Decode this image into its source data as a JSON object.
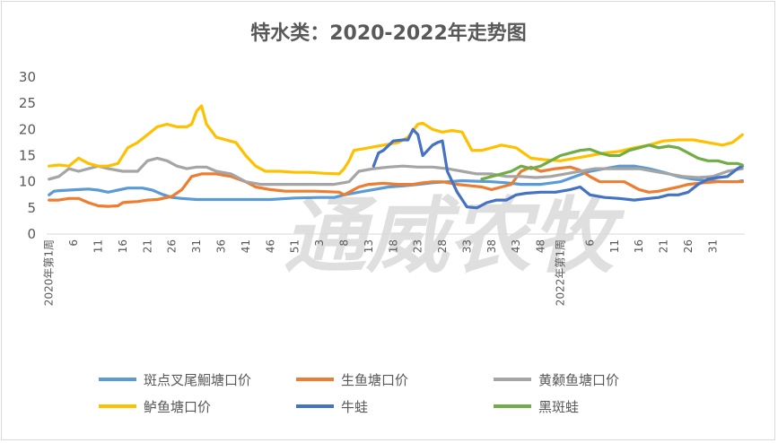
{
  "chart_data": {
    "type": "line",
    "title": "特水类：2020-2022年走势图",
    "watermark": "通威农牧",
    "ylim": [
      0,
      30
    ],
    "yticks": [
      0,
      5,
      10,
      15,
      20,
      25,
      30
    ],
    "grid": false,
    "legend_position": "bottom",
    "x_period_labels": [
      "2020年第1周",
      "2022年第1周"
    ],
    "x_count": 142,
    "x_ticks": [
      {
        "i": 5,
        "label": "6"
      },
      {
        "i": 10,
        "label": "11"
      },
      {
        "i": 15,
        "label": "16"
      },
      {
        "i": 20,
        "label": "21"
      },
      {
        "i": 25,
        "label": "26"
      },
      {
        "i": 30,
        "label": "31"
      },
      {
        "i": 35,
        "label": "36"
      },
      {
        "i": 40,
        "label": "41"
      },
      {
        "i": 45,
        "label": "46"
      },
      {
        "i": 50,
        "label": "51"
      },
      {
        "i": 55,
        "label": "3"
      },
      {
        "i": 60,
        "label": "8"
      },
      {
        "i": 65,
        "label": "13"
      },
      {
        "i": 70,
        "label": "18"
      },
      {
        "i": 75,
        "label": "23"
      },
      {
        "i": 80,
        "label": "28"
      },
      {
        "i": 85,
        "label": "33"
      },
      {
        "i": 90,
        "label": "38"
      },
      {
        "i": 95,
        "label": "43"
      },
      {
        "i": 100,
        "label": "48"
      },
      {
        "i": 110,
        "label": "6"
      },
      {
        "i": 115,
        "label": "11"
      },
      {
        "i": 120,
        "label": "16"
      },
      {
        "i": 125,
        "label": "21"
      },
      {
        "i": 130,
        "label": "26"
      },
      {
        "i": 135,
        "label": "31"
      }
    ],
    "series": [
      {
        "name": "斑点叉尾鮰塘口价",
        "color": "#5b9bd5",
        "points": [
          [
            0,
            7.5
          ],
          [
            1,
            8.2
          ],
          [
            2,
            8.3
          ],
          [
            6,
            8.5
          ],
          [
            8,
            8.6
          ],
          [
            10,
            8.4
          ],
          [
            12,
            8.0
          ],
          [
            14,
            8.4
          ],
          [
            16,
            8.8
          ],
          [
            19,
            8.8
          ],
          [
            21,
            8.4
          ],
          [
            23,
            7.6
          ],
          [
            25,
            7.0
          ],
          [
            27,
            6.8
          ],
          [
            30,
            6.6
          ],
          [
            35,
            6.6
          ],
          [
            40,
            6.6
          ],
          [
            45,
            6.6
          ],
          [
            50,
            6.9
          ],
          [
            55,
            7.0
          ],
          [
            58,
            7.0
          ],
          [
            60,
            7.5
          ],
          [
            63,
            8.0
          ],
          [
            66,
            8.5
          ],
          [
            69,
            9.0
          ],
          [
            72,
            9.2
          ],
          [
            75,
            9.5
          ],
          [
            78,
            9.8
          ],
          [
            81,
            10.0
          ],
          [
            84,
            10.2
          ],
          [
            87,
            10.1
          ],
          [
            90,
            10.0
          ],
          [
            93,
            9.8
          ],
          [
            96,
            9.5
          ],
          [
            100,
            9.5
          ],
          [
            104,
            10.0
          ],
          [
            107,
            11.0
          ],
          [
            110,
            12.0
          ],
          [
            113,
            12.5
          ],
          [
            116,
            13.0
          ],
          [
            119,
            13.0
          ],
          [
            122,
            12.5
          ],
          [
            125,
            11.8
          ],
          [
            128,
            11.0
          ],
          [
            131,
            10.5
          ],
          [
            134,
            10.2
          ],
          [
            137,
            10.0
          ],
          [
            140,
            10.0
          ],
          [
            141,
            10.2
          ]
        ]
      },
      {
        "name": "生鱼塘口价",
        "color": "#ed7d31",
        "points": [
          [
            0,
            6.5
          ],
          [
            2,
            6.5
          ],
          [
            4,
            6.8
          ],
          [
            6,
            6.8
          ],
          [
            8,
            6.0
          ],
          [
            10,
            5.4
          ],
          [
            12,
            5.3
          ],
          [
            14,
            5.4
          ],
          [
            15,
            6.0
          ],
          [
            16,
            6.1
          ],
          [
            18,
            6.2
          ],
          [
            20,
            6.5
          ],
          [
            22,
            6.6
          ],
          [
            25,
            7.2
          ],
          [
            27,
            8.5
          ],
          [
            29,
            11.0
          ],
          [
            31,
            11.5
          ],
          [
            34,
            11.5
          ],
          [
            37,
            11.0
          ],
          [
            40,
            10.0
          ],
          [
            42,
            9.0
          ],
          [
            45,
            8.5
          ],
          [
            48,
            8.2
          ],
          [
            51,
            8.2
          ],
          [
            54,
            8.2
          ],
          [
            57,
            8.1
          ],
          [
            59,
            8.0
          ],
          [
            60,
            7.5
          ],
          [
            61,
            8.0
          ],
          [
            63,
            9.0
          ],
          [
            65,
            9.5
          ],
          [
            68,
            9.7
          ],
          [
            71,
            9.5
          ],
          [
            74,
            9.5
          ],
          [
            76,
            9.8
          ],
          [
            78,
            10.0
          ],
          [
            80,
            10.0
          ],
          [
            83,
            9.5
          ],
          [
            86,
            9.2
          ],
          [
            88,
            9.0
          ],
          [
            90,
            8.5
          ],
          [
            92,
            9.0
          ],
          [
            94,
            9.5
          ],
          [
            96,
            12.0
          ],
          [
            98,
            12.8
          ],
          [
            100,
            12.0
          ],
          [
            103,
            12.5
          ],
          [
            106,
            12.8
          ],
          [
            108,
            12.2
          ],
          [
            110,
            11.0
          ],
          [
            112,
            10.0
          ],
          [
            115,
            10.0
          ],
          [
            117,
            10.0
          ],
          [
            120,
            8.5
          ],
          [
            122,
            8.0
          ],
          [
            124,
            8.2
          ],
          [
            126,
            8.6
          ],
          [
            128,
            9.0
          ],
          [
            130,
            9.5
          ],
          [
            133,
            9.8
          ],
          [
            136,
            10.0
          ],
          [
            139,
            10.0
          ],
          [
            141,
            10.0
          ]
        ]
      },
      {
        "name": "黄颡鱼塘口价",
        "color": "#a5a5a5",
        "points": [
          [
            0,
            10.5
          ],
          [
            2,
            11.0
          ],
          [
            4,
            12.5
          ],
          [
            6,
            12.0
          ],
          [
            8,
            12.5
          ],
          [
            10,
            13.0
          ],
          [
            12,
            12.5
          ],
          [
            15,
            12.0
          ],
          [
            18,
            12.0
          ],
          [
            20,
            14.0
          ],
          [
            22,
            14.5
          ],
          [
            24,
            14.0
          ],
          [
            26,
            13.0
          ],
          [
            28,
            12.5
          ],
          [
            30,
            12.8
          ],
          [
            32,
            12.8
          ],
          [
            34,
            12.0
          ],
          [
            37,
            11.5
          ],
          [
            40,
            10.0
          ],
          [
            43,
            9.5
          ],
          [
            46,
            9.5
          ],
          [
            49,
            9.5
          ],
          [
            52,
            9.5
          ],
          [
            55,
            9.5
          ],
          [
            58,
            9.5
          ],
          [
            61,
            10.0
          ],
          [
            63,
            12.0
          ],
          [
            66,
            12.5
          ],
          [
            69,
            12.8
          ],
          [
            72,
            13.0
          ],
          [
            75,
            12.8
          ],
          [
            78,
            12.8
          ],
          [
            81,
            12.5
          ],
          [
            84,
            12.0
          ],
          [
            87,
            11.5
          ],
          [
            90,
            11.5
          ],
          [
            93,
            11.0
          ],
          [
            96,
            11.0
          ],
          [
            99,
            10.8
          ],
          [
            102,
            11.0
          ],
          [
            105,
            11.5
          ],
          [
            108,
            12.0
          ],
          [
            111,
            12.5
          ],
          [
            114,
            12.5
          ],
          [
            117,
            12.5
          ],
          [
            120,
            12.5
          ],
          [
            123,
            12.0
          ],
          [
            126,
            11.5
          ],
          [
            129,
            11.0
          ],
          [
            132,
            10.8
          ],
          [
            135,
            11.0
          ],
          [
            138,
            12.0
          ],
          [
            141,
            12.5
          ]
        ]
      },
      {
        "name": "鲈鱼塘口价",
        "color": "#ffc000",
        "points": [
          [
            0,
            13.0
          ],
          [
            2,
            13.2
          ],
          [
            4,
            13.0
          ],
          [
            6,
            14.5
          ],
          [
            8,
            13.5
          ],
          [
            10,
            13.0
          ],
          [
            12,
            13.0
          ],
          [
            14,
            13.5
          ],
          [
            16,
            16.5
          ],
          [
            18,
            17.5
          ],
          [
            20,
            19.0
          ],
          [
            22,
            20.5
          ],
          [
            24,
            21.0
          ],
          [
            26,
            20.5
          ],
          [
            28,
            20.5
          ],
          [
            29,
            21.0
          ],
          [
            30,
            23.5
          ],
          [
            31,
            24.5
          ],
          [
            32,
            21.0
          ],
          [
            34,
            18.5
          ],
          [
            36,
            18.0
          ],
          [
            38,
            17.5
          ],
          [
            40,
            15.0
          ],
          [
            42,
            13.0
          ],
          [
            44,
            12.0
          ],
          [
            47,
            12.0
          ],
          [
            50,
            11.8
          ],
          [
            53,
            11.8
          ],
          [
            56,
            11.6
          ],
          [
            59,
            11.5
          ],
          [
            60,
            12.5
          ],
          [
            61,
            14.0
          ],
          [
            62,
            16.0
          ],
          [
            65,
            16.5
          ],
          [
            68,
            17.0
          ],
          [
            71,
            17.5
          ],
          [
            73,
            18.5
          ],
          [
            75,
            21.0
          ],
          [
            76,
            21.2
          ],
          [
            78,
            20.0
          ],
          [
            80,
            19.5
          ],
          [
            82,
            19.8
          ],
          [
            84,
            19.5
          ],
          [
            86,
            16.0
          ],
          [
            88,
            16.0
          ],
          [
            90,
            16.5
          ],
          [
            92,
            17.0
          ],
          [
            95,
            16.5
          ],
          [
            98,
            14.5
          ],
          [
            101,
            14.2
          ],
          [
            104,
            14.0
          ],
          [
            107,
            14.5
          ],
          [
            110,
            15.0
          ],
          [
            113,
            15.5
          ],
          [
            116,
            15.8
          ],
          [
            119,
            16.5
          ],
          [
            122,
            17.0
          ],
          [
            125,
            17.8
          ],
          [
            128,
            18.0
          ],
          [
            131,
            18.0
          ],
          [
            134,
            17.5
          ],
          [
            137,
            17.0
          ],
          [
            139,
            17.5
          ],
          [
            141,
            19.0
          ]
        ]
      },
      {
        "name": "牛蛙",
        "color": "#4472c4",
        "points": [
          [
            66,
            13.0
          ],
          [
            67,
            15.5
          ],
          [
            68,
            16.0
          ],
          [
            70,
            17.8
          ],
          [
            72,
            18.0
          ],
          [
            73,
            18.0
          ],
          [
            74,
            20.0
          ],
          [
            75,
            19.0
          ],
          [
            76,
            15.0
          ],
          [
            77,
            16.0
          ],
          [
            78,
            17.0
          ],
          [
            79,
            17.5
          ],
          [
            80,
            17.8
          ],
          [
            81,
            12.0
          ],
          [
            83,
            8.0
          ],
          [
            85,
            5.2
          ],
          [
            87,
            5.0
          ],
          [
            89,
            6.0
          ],
          [
            91,
            6.5
          ],
          [
            93,
            6.5
          ],
          [
            95,
            7.5
          ],
          [
            97,
            7.8
          ],
          [
            100,
            8.0
          ],
          [
            103,
            8.0
          ],
          [
            106,
            8.5
          ],
          [
            108,
            9.0
          ],
          [
            110,
            7.5
          ],
          [
            113,
            7.0
          ],
          [
            116,
            6.8
          ],
          [
            119,
            6.5
          ],
          [
            122,
            6.8
          ],
          [
            124,
            7.0
          ],
          [
            126,
            7.5
          ],
          [
            128,
            7.5
          ],
          [
            130,
            8.0
          ],
          [
            132,
            9.5
          ],
          [
            134,
            10.5
          ],
          [
            136,
            10.8
          ],
          [
            138,
            11.0
          ],
          [
            140,
            12.5
          ],
          [
            141,
            13.0
          ]
        ]
      },
      {
        "name": "黑斑蛙",
        "color": "#70ad47",
        "points": [
          [
            88,
            10.5
          ],
          [
            90,
            11.0
          ],
          [
            92,
            11.5
          ],
          [
            94,
            12.0
          ],
          [
            96,
            13.0
          ],
          [
            98,
            12.5
          ],
          [
            100,
            13.0
          ],
          [
            102,
            14.0
          ],
          [
            104,
            15.0
          ],
          [
            106,
            15.5
          ],
          [
            108,
            16.0
          ],
          [
            110,
            16.2
          ],
          [
            112,
            15.5
          ],
          [
            114,
            15.0
          ],
          [
            116,
            15.0
          ],
          [
            118,
            16.0
          ],
          [
            120,
            16.5
          ],
          [
            122,
            17.0
          ],
          [
            124,
            16.5
          ],
          [
            126,
            16.8
          ],
          [
            128,
            16.5
          ],
          [
            130,
            15.5
          ],
          [
            132,
            14.5
          ],
          [
            134,
            14.0
          ],
          [
            136,
            14.0
          ],
          [
            138,
            13.5
          ],
          [
            140,
            13.5
          ],
          [
            141,
            13.2
          ]
        ]
      }
    ]
  }
}
